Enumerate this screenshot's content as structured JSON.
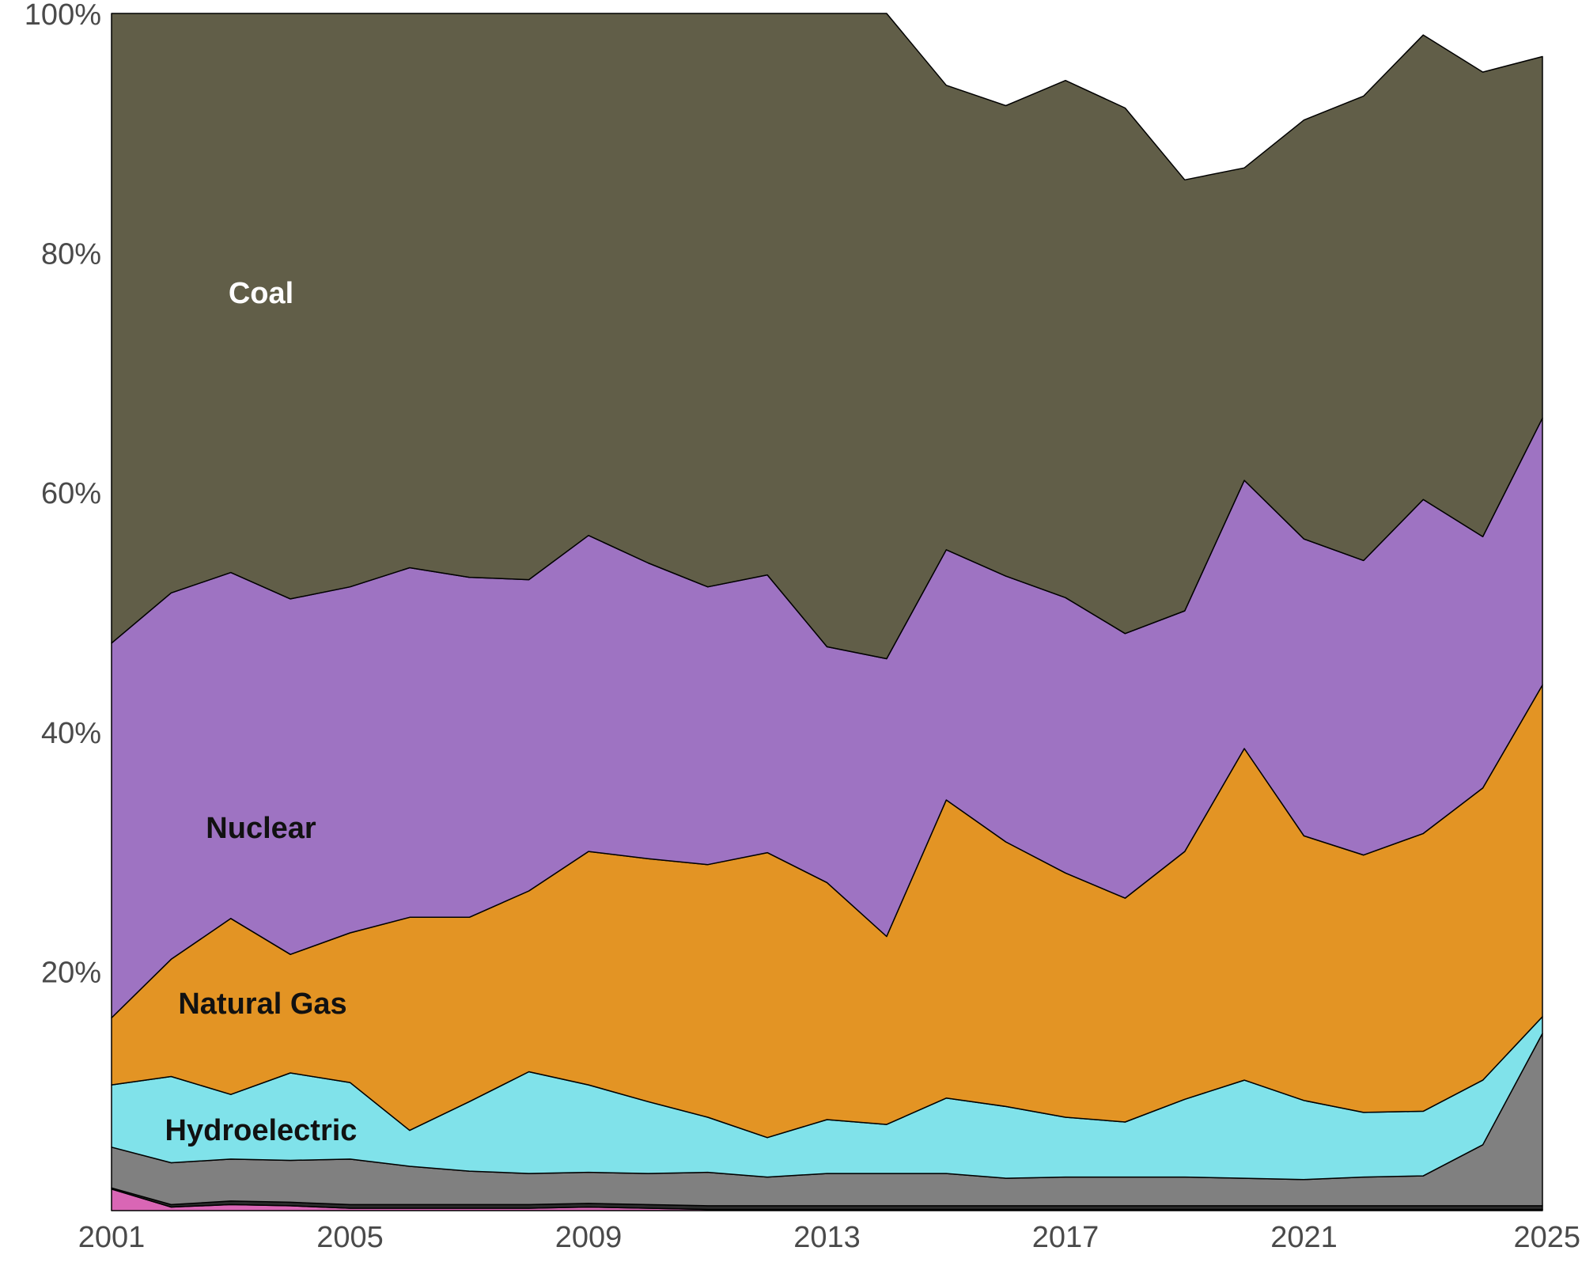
{
  "chart_data": {
    "type": "area",
    "stacked": true,
    "normalized": true,
    "x": [
      2001,
      2002,
      2003,
      2004,
      2005,
      2006,
      2007,
      2008,
      2009,
      2010,
      2011,
      2012,
      2013,
      2014,
      2015,
      2016,
      2017,
      2018,
      2019,
      2020,
      2021,
      2022,
      2023,
      2024,
      2025
    ],
    "xticks": [
      "2001",
      "2005",
      "2009",
      "2013",
      "2017",
      "2021",
      "2025"
    ],
    "yticks": [
      "20%",
      "40%",
      "60%",
      "80%",
      "100%"
    ],
    "ylim": [
      0,
      100
    ],
    "grid": false,
    "legend": "none",
    "series": [
      {
        "name": "",
        "color": "#d966b5",
        "values": [
          1.8,
          0.3,
          0.5,
          0.4,
          0.2,
          0.2,
          0.2,
          0.2,
          0.3,
          0.2,
          0.1,
          0.1,
          0.1,
          0.1,
          0.1,
          0.1,
          0.1,
          0.1,
          0.1,
          0.1,
          0.1,
          0.1,
          0.1,
          0.1,
          0.1
        ]
      },
      {
        "name": "",
        "color": "#2a2a2a",
        "values": [
          0.1,
          0.2,
          0.3,
          0.3,
          0.3,
          0.3,
          0.3,
          0.3,
          0.3,
          0.3,
          0.3,
          0.3,
          0.3,
          0.3,
          0.3,
          0.3,
          0.3,
          0.3,
          0.3,
          0.3,
          0.3,
          0.3,
          0.3,
          0.3,
          0.3
        ]
      },
      {
        "name": "",
        "color": "#808080",
        "values": [
          3.4,
          3.5,
          3.5,
          3.5,
          3.8,
          3.2,
          2.8,
          2.6,
          2.6,
          2.6,
          2.8,
          2.4,
          2.7,
          2.7,
          2.7,
          2.3,
          2.4,
          2.4,
          2.4,
          2.3,
          2.2,
          2.4,
          2.5,
          5.1,
          14.4
        ]
      },
      {
        "name": "Hydroelectric",
        "color": "#80e2ea",
        "values": [
          5.2,
          7.2,
          5.4,
          7.3,
          6.4,
          3.0,
          5.8,
          8.5,
          7.3,
          6.0,
          4.6,
          3.3,
          4.5,
          4.1,
          6.3,
          6.0,
          5.0,
          4.6,
          6.5,
          8.2,
          6.6,
          5.4,
          5.4,
          5.4,
          1.4
        ]
      },
      {
        "name": "Natural Gas",
        "color": "#e39424",
        "values": [
          5.6,
          9.8,
          14.7,
          9.9,
          12.5,
          17.8,
          15.4,
          15.1,
          19.5,
          20.3,
          21.1,
          23.8,
          19.8,
          15.7,
          24.9,
          22.1,
          20.4,
          18.7,
          20.7,
          27.7,
          22.1,
          21.5,
          23.2,
          24.4,
          27.7
        ]
      },
      {
        "name": "Nuclear",
        "color": "#9e73c2",
        "values": [
          31.3,
          30.6,
          28.9,
          29.7,
          28.9,
          29.2,
          28.4,
          26.0,
          26.4,
          24.7,
          23.2,
          23.2,
          19.7,
          23.2,
          20.9,
          22.2,
          23.0,
          22.1,
          20.1,
          22.4,
          24.8,
          24.6,
          27.9,
          21.0,
          22.3
        ]
      },
      {
        "name": "Coal",
        "color": "#615e48",
        "values": [
          52.6,
          48.4,
          46.7,
          48.9,
          47.9,
          46.3,
          47.1,
          47.3,
          43.6,
          45.9,
          47.9,
          47.9,
          52.9,
          53.9,
          38.8,
          39.3,
          43.2,
          43.9,
          36.0,
          26.1,
          35.0,
          38.8,
          38.8,
          38.8,
          30.2
        ]
      }
    ]
  }
}
